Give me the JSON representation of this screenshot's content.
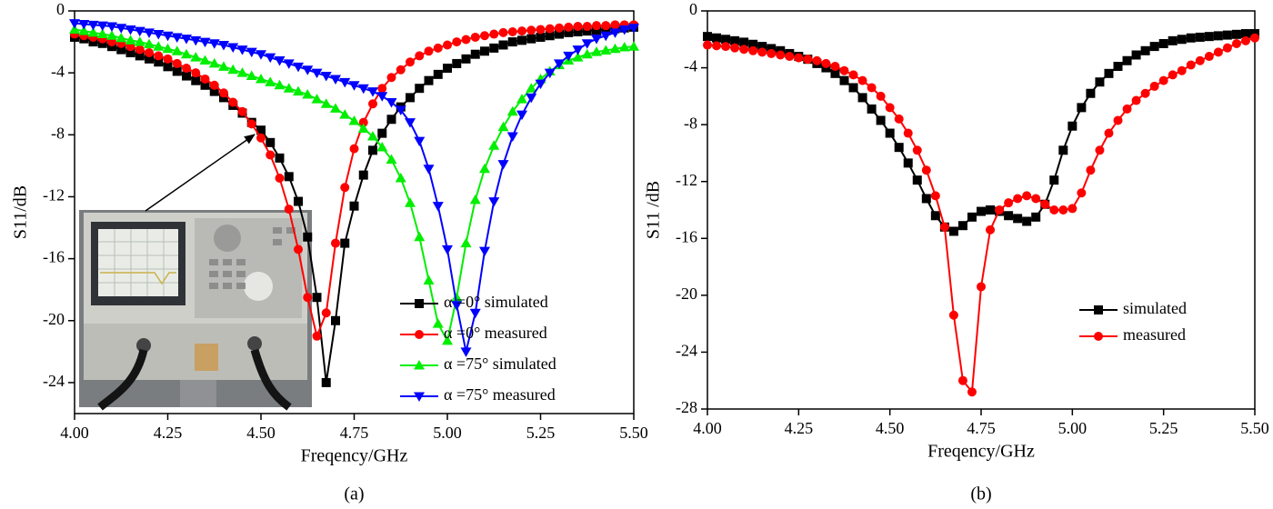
{
  "chart_data": [
    {
      "type": "line",
      "x_label": "Freqency/GHz",
      "y_label": "S11/dB",
      "caption": "(a)",
      "x": [
        4,
        4.025,
        4.05,
        4.075,
        4.1,
        4.125,
        4.15,
        4.175,
        4.2,
        4.225,
        4.25,
        4.275,
        4.3,
        4.325,
        4.35,
        4.375,
        4.4,
        4.425,
        4.45,
        4.475,
        4.5,
        4.525,
        4.55,
        4.575,
        4.6,
        4.625,
        4.65,
        4.675,
        4.7,
        4.725,
        4.75,
        4.775,
        4.8,
        4.825,
        4.85,
        4.875,
        4.9,
        4.925,
        4.95,
        4.975,
        5,
        5.025,
        5.05,
        5.075,
        5.1,
        5.125,
        5.15,
        5.175,
        5.2,
        5.225,
        5.25,
        5.275,
        5.3,
        5.325,
        5.35,
        5.375,
        5.4,
        5.425,
        5.45,
        5.475,
        5.5
      ],
      "xlim": [
        4,
        5.5
      ],
      "xticks": [
        {
          "value": 4,
          "label": "4.00"
        },
        4.25,
        {
          "value": 4.5,
          "label": "4.50"
        },
        4.75,
        {
          "value": 5,
          "label": "5.00"
        },
        5.25,
        {
          "value": 5.5,
          "label": "5.50"
        }
      ],
      "ylim": [
        -26,
        0
      ],
      "yticks": [
        0,
        -4,
        -8,
        -12,
        -16,
        -20,
        -24
      ],
      "legend": "lower right",
      "series": [
        {
          "name": "α =0° simulated",
          "color": "#000000",
          "marker": "square",
          "values": [
            -1.7,
            -1.8,
            -2.0,
            -2.1,
            -2.3,
            -2.5,
            -2.7,
            -2.9,
            -3.1,
            -3.3,
            -3.6,
            -3.9,
            -4.2,
            -4.5,
            -4.8,
            -5.2,
            -5.6,
            -6.1,
            -6.6,
            -7.2,
            -7.7,
            -8.5,
            -9.5,
            -10.7,
            -12.3,
            -14.6,
            -18.5,
            -24.0,
            -20.0,
            -15.0,
            -12.6,
            -10.6,
            -9.0,
            -7.9,
            -7.0,
            -6.2,
            -5.6,
            -5.0,
            -4.5,
            -4.1,
            -3.7,
            -3.4,
            -3.1,
            -2.8,
            -2.6,
            -2.4,
            -2.2,
            -2.0,
            -1.9,
            -1.8,
            -1.7,
            -1.6,
            -1.5,
            -1.4,
            -1.35,
            -1.3,
            -1.25,
            -1.2,
            -1.15,
            -1.1,
            -1.05
          ]
        },
        {
          "name": "α =0° measured",
          "color": "#ff0000",
          "marker": "circle",
          "values": [
            -1.5,
            -1.6,
            -1.7,
            -1.8,
            -2.0,
            -2.1,
            -2.3,
            -2.5,
            -2.7,
            -2.9,
            -3.1,
            -3.4,
            -3.7,
            -4.0,
            -4.4,
            -4.8,
            -5.3,
            -5.9,
            -6.5,
            -7.3,
            -8.2,
            -9.3,
            -10.8,
            -12.8,
            -15.4,
            -18.5,
            -21.0,
            -19.5,
            -15.0,
            -11.4,
            -8.9,
            -7.2,
            -6.0,
            -5.0,
            -4.3,
            -3.8,
            -3.3,
            -2.9,
            -2.6,
            -2.4,
            -2.2,
            -2.0,
            -1.85,
            -1.7,
            -1.6,
            -1.5,
            -1.4,
            -1.35,
            -1.3,
            -1.25,
            -1.2,
            -1.15,
            -1.1,
            -1.05,
            -1.0,
            -1.0,
            -0.95,
            -0.95,
            -0.9,
            -0.9,
            -0.9
          ]
        },
        {
          "name": "α =75° simulated",
          "color": "#00ee00",
          "marker": "triangle-up",
          "values": [
            -1.2,
            -1.3,
            -1.4,
            -1.5,
            -1.6,
            -1.75,
            -1.9,
            -2.0,
            -2.15,
            -2.3,
            -2.45,
            -2.6,
            -2.8,
            -3.0,
            -3.2,
            -3.4,
            -3.6,
            -3.8,
            -4.0,
            -4.2,
            -4.4,
            -4.6,
            -4.8,
            -5.0,
            -5.2,
            -5.4,
            -5.7,
            -6.0,
            -6.3,
            -6.7,
            -7.1,
            -7.6,
            -8.1,
            -8.8,
            -9.6,
            -10.8,
            -12.4,
            -14.6,
            -17.4,
            -20.2,
            -21.3,
            -18.5,
            -15.0,
            -12.2,
            -10.2,
            -8.7,
            -7.5,
            -6.5,
            -5.7,
            -5.0,
            -4.4,
            -3.9,
            -3.5,
            -3.2,
            -3.0,
            -2.8,
            -2.65,
            -2.55,
            -2.45,
            -2.35,
            -2.3
          ]
        },
        {
          "name": "α =75° measured",
          "color": "#0000ff",
          "marker": "triangle-down",
          "values": [
            -0.8,
            -0.85,
            -0.9,
            -0.95,
            -1.0,
            -1.1,
            -1.2,
            -1.3,
            -1.4,
            -1.5,
            -1.6,
            -1.7,
            -1.8,
            -1.9,
            -2.0,
            -2.1,
            -2.2,
            -2.35,
            -2.5,
            -2.65,
            -2.8,
            -3.0,
            -3.2,
            -3.4,
            -3.6,
            -3.8,
            -4.0,
            -4.2,
            -4.4,
            -4.6,
            -4.8,
            -5.0,
            -5.2,
            -5.5,
            -5.9,
            -6.4,
            -7.2,
            -8.4,
            -10.2,
            -12.6,
            -15.4,
            -19.0,
            -22.0,
            -19.5,
            -15.5,
            -12.3,
            -9.9,
            -8.1,
            -6.7,
            -5.6,
            -4.7,
            -4.0,
            -3.4,
            -2.9,
            -2.5,
            -2.1,
            -1.8,
            -1.6,
            -1.4,
            -1.2,
            -1.1
          ]
        }
      ]
    },
    {
      "type": "line",
      "x_label": "Freqency/GHz",
      "y_label": "S11 /dB",
      "caption": "(b)",
      "x": [
        4,
        4.025,
        4.05,
        4.075,
        4.1,
        4.125,
        4.15,
        4.175,
        4.2,
        4.225,
        4.25,
        4.275,
        4.3,
        4.325,
        4.35,
        4.375,
        4.4,
        4.425,
        4.45,
        4.475,
        4.5,
        4.525,
        4.55,
        4.575,
        4.6,
        4.625,
        4.65,
        4.675,
        4.7,
        4.725,
        4.75,
        4.775,
        4.8,
        4.825,
        4.85,
        4.875,
        4.9,
        4.925,
        4.95,
        4.975,
        5,
        5.025,
        5.05,
        5.075,
        5.1,
        5.125,
        5.15,
        5.175,
        5.2,
        5.225,
        5.25,
        5.275,
        5.3,
        5.325,
        5.35,
        5.375,
        5.4,
        5.425,
        5.45,
        5.475,
        5.5
      ],
      "xlim": [
        4,
        5.5
      ],
      "xticks": [
        {
          "value": 4,
          "label": "4.00"
        },
        4.25,
        {
          "value": 4.5,
          "label": "4.50"
        },
        4.75,
        {
          "value": 5,
          "label": "5.00"
        },
        5.25,
        {
          "value": 5.5,
          "label": "5.50"
        }
      ],
      "ylim": [
        -28,
        0
      ],
      "yticks": [
        0,
        -4,
        -8,
        -12,
        -16,
        -20,
        -24,
        -28
      ],
      "legend": "lower right",
      "series": [
        {
          "name": "simulated",
          "color": "#000000",
          "marker": "square",
          "values": [
            -1.8,
            -1.9,
            -2.0,
            -2.1,
            -2.2,
            -2.35,
            -2.5,
            -2.65,
            -2.8,
            -3.0,
            -3.2,
            -3.4,
            -3.7,
            -4.0,
            -4.4,
            -4.9,
            -5.4,
            -6.1,
            -6.9,
            -7.7,
            -8.6,
            -9.6,
            -10.7,
            -11.9,
            -13.2,
            -14.4,
            -15.2,
            -15.5,
            -15.1,
            -14.5,
            -14.1,
            -14.0,
            -14.1,
            -14.4,
            -14.6,
            -14.8,
            -14.5,
            -13.6,
            -11.9,
            -9.8,
            -8.1,
            -6.8,
            -5.8,
            -5.0,
            -4.4,
            -3.9,
            -3.5,
            -3.1,
            -2.8,
            -2.5,
            -2.3,
            -2.1,
            -2.0,
            -1.9,
            -1.85,
            -1.8,
            -1.75,
            -1.7,
            -1.65,
            -1.6,
            -1.6
          ]
        },
        {
          "name": "measured",
          "color": "#ff0000",
          "marker": "circle",
          "values": [
            -2.4,
            -2.45,
            -2.5,
            -2.6,
            -2.7,
            -2.8,
            -2.9,
            -3.0,
            -3.1,
            -3.2,
            -3.3,
            -3.4,
            -3.5,
            -3.7,
            -3.9,
            -4.2,
            -4.5,
            -4.9,
            -5.4,
            -6.0,
            -6.8,
            -7.6,
            -8.6,
            -9.8,
            -11.2,
            -13.0,
            -15.2,
            -21.4,
            -26.0,
            -26.8,
            -19.4,
            -15.4,
            -14.0,
            -13.5,
            -13.2,
            -13.0,
            -13.2,
            -13.6,
            -14.0,
            -14.0,
            -13.9,
            -12.8,
            -11.2,
            -9.8,
            -8.6,
            -7.7,
            -6.9,
            -6.3,
            -5.8,
            -5.3,
            -4.9,
            -4.5,
            -4.2,
            -3.8,
            -3.5,
            -3.2,
            -2.9,
            -2.6,
            -2.3,
            -2.1,
            -1.9
          ]
        }
      ]
    }
  ]
}
